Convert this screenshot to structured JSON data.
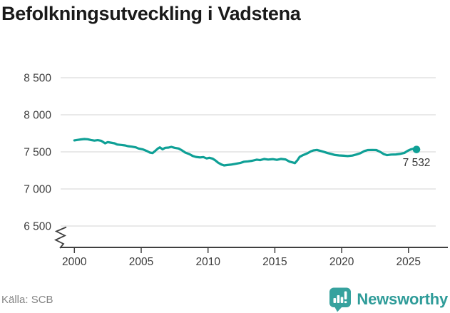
{
  "title": "Befolkningsutveckling i Vadstena",
  "source": "Källa: SCB",
  "branding": {
    "name": "Newsworthy"
  },
  "colors": {
    "line": "#0fa096",
    "grid": "#dcdcdc",
    "axis": "#404040",
    "tick_text": "#3c3c3c",
    "title_text": "#1a1a1a",
    "muted_text": "#848484",
    "brand_teal": "#2f9c99"
  },
  "chart_data": {
    "type": "line",
    "title": "Befolkningsutveckling i Vadstena",
    "xlabel": "",
    "ylabel": "",
    "x_tick_labels": [
      "2000",
      "2005",
      "2010",
      "2015",
      "2020",
      "2025"
    ],
    "x_ticks": [
      2000,
      2005,
      2010,
      2015,
      2020,
      2025
    ],
    "y_ticks": [
      6500,
      7000,
      7500,
      8000,
      8500
    ],
    "y_tick_labels": [
      "6 500",
      "7 000",
      "7 500",
      "8 000",
      "8 500"
    ],
    "xlim": [
      1999,
      2026.5
    ],
    "ylim": [
      6250,
      8600
    ],
    "axis_break": true,
    "grid": "horizontal",
    "legend": "none",
    "series": [
      {
        "name": "Befolkning",
        "points": [
          [
            2000.0,
            7655
          ],
          [
            2000.25,
            7662
          ],
          [
            2000.5,
            7668
          ],
          [
            2000.75,
            7673
          ],
          [
            2001.0,
            7670
          ],
          [
            2001.25,
            7660
          ],
          [
            2001.5,
            7652
          ],
          [
            2001.75,
            7658
          ],
          [
            2002.0,
            7650
          ],
          [
            2002.3,
            7615
          ],
          [
            2002.5,
            7632
          ],
          [
            2002.7,
            7625
          ],
          [
            2003.0,
            7615
          ],
          [
            2003.2,
            7599
          ],
          [
            2003.5,
            7593
          ],
          [
            2003.8,
            7587
          ],
          [
            2004.0,
            7577
          ],
          [
            2004.3,
            7570
          ],
          [
            2004.6,
            7561
          ],
          [
            2004.8,
            7545
          ],
          [
            2005.1,
            7535
          ],
          [
            2005.4,
            7513
          ],
          [
            2005.65,
            7490
          ],
          [
            2005.85,
            7484
          ],
          [
            2006.05,
            7513
          ],
          [
            2006.25,
            7545
          ],
          [
            2006.4,
            7561
          ],
          [
            2006.6,
            7535
          ],
          [
            2006.8,
            7555
          ],
          [
            2007.05,
            7558
          ],
          [
            2007.25,
            7567
          ],
          [
            2007.5,
            7555
          ],
          [
            2007.8,
            7545
          ],
          [
            2008.05,
            7520
          ],
          [
            2008.3,
            7490
          ],
          [
            2008.6,
            7470
          ],
          [
            2008.85,
            7445
          ],
          [
            2009.1,
            7432
          ],
          [
            2009.4,
            7425
          ],
          [
            2009.65,
            7430
          ],
          [
            2009.9,
            7412
          ],
          [
            2010.1,
            7420
          ],
          [
            2010.35,
            7408
          ],
          [
            2010.55,
            7385
          ],
          [
            2010.75,
            7355
          ],
          [
            2011.0,
            7330
          ],
          [
            2011.2,
            7317
          ],
          [
            2011.4,
            7322
          ],
          [
            2011.7,
            7328
          ],
          [
            2012.05,
            7338
          ],
          [
            2012.4,
            7350
          ],
          [
            2012.7,
            7367
          ],
          [
            2013.0,
            7372
          ],
          [
            2013.3,
            7380
          ],
          [
            2013.65,
            7395
          ],
          [
            2013.9,
            7388
          ],
          [
            2014.2,
            7404
          ],
          [
            2014.5,
            7396
          ],
          [
            2014.85,
            7402
          ],
          [
            2015.15,
            7392
          ],
          [
            2015.45,
            7405
          ],
          [
            2015.8,
            7398
          ],
          [
            2016.1,
            7368
          ],
          [
            2016.35,
            7357
          ],
          [
            2016.5,
            7348
          ],
          [
            2016.7,
            7390
          ],
          [
            2016.85,
            7432
          ],
          [
            2017.1,
            7456
          ],
          [
            2017.45,
            7482
          ],
          [
            2017.7,
            7508
          ],
          [
            2017.9,
            7520
          ],
          [
            2018.15,
            7526
          ],
          [
            2018.45,
            7512
          ],
          [
            2018.7,
            7498
          ],
          [
            2018.95,
            7484
          ],
          [
            2019.25,
            7470
          ],
          [
            2019.5,
            7458
          ],
          [
            2019.8,
            7452
          ],
          [
            2020.15,
            7448
          ],
          [
            2020.45,
            7443
          ],
          [
            2020.8,
            7450
          ],
          [
            2021.1,
            7464
          ],
          [
            2021.4,
            7482
          ],
          [
            2021.7,
            7512
          ],
          [
            2021.95,
            7524
          ],
          [
            2022.3,
            7526
          ],
          [
            2022.6,
            7524
          ],
          [
            2022.9,
            7498
          ],
          [
            2023.15,
            7470
          ],
          [
            2023.4,
            7456
          ],
          [
            2023.7,
            7463
          ],
          [
            2024.05,
            7465
          ],
          [
            2024.35,
            7472
          ],
          [
            2024.7,
            7487
          ],
          [
            2024.95,
            7515
          ],
          [
            2025.2,
            7535
          ],
          [
            2025.4,
            7544
          ],
          [
            2025.6,
            7532
          ]
        ]
      }
    ],
    "end_point": {
      "year": 2025.6,
      "value": 7532,
      "label": "7 532"
    }
  }
}
